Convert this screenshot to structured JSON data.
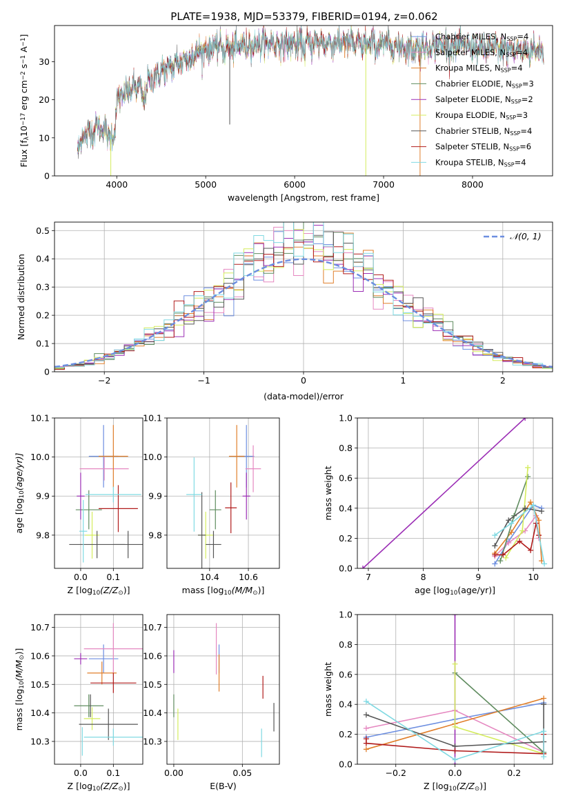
{
  "figure": {
    "title": "PLATE=1938, MJD=53379, FIBERID=0194, z=0.062"
  },
  "fits": [
    {
      "name": "Chabrier MILES",
      "nssp": "4",
      "color": "#6C8EE0"
    },
    {
      "name": "Salpeter MILES",
      "nssp": "4",
      "color": "#E587C0"
    },
    {
      "name": "Kroupa MILES",
      "nssp": "4",
      "color": "#E07E2A"
    },
    {
      "name": "Chabrier ELODIE",
      "nssp": "3",
      "color": "#5E8B5E"
    },
    {
      "name": "Salpeter ELODIE",
      "nssp": "2",
      "color": "#9B2DB5"
    },
    {
      "name": "Kroupa ELODIE",
      "nssp": "3",
      "color": "#D4EC5C"
    },
    {
      "name": "Chabrier STELIB",
      "nssp": "4",
      "color": "#555555"
    },
    {
      "name": "Salpeter STELIB",
      "nssp": "6",
      "color": "#B01A1A"
    },
    {
      "name": "Kroupa STELIB",
      "nssp": "4",
      "color": "#7FD9E2"
    }
  ],
  "chart_data": [
    {
      "id": "spectrum",
      "type": "line",
      "xlabel_parts": [
        "wavelength [Angstrom, rest frame]"
      ],
      "ylabel_parts": [
        "Flux [f",
        "λ",
        "10",
        "−17",
        " erg cm",
        "−2",
        " s",
        "−1",
        " A",
        "−1",
        "]"
      ],
      "legend_suffix": ", N",
      "legend_sub": "SSP",
      "xlim": [
        3300,
        8900
      ],
      "ylim": [
        0,
        39.5
      ],
      "xticks": [
        4000,
        5000,
        6000,
        7000,
        8000
      ],
      "yticks": [
        0,
        10,
        20,
        30
      ],
      "grid": false,
      "legend_position": "upper-right",
      "continuum": {
        "x": [
          3560,
          3620,
          3700,
          3800,
          3880,
          3930,
          3970,
          4000,
          4050,
          4150,
          4250,
          4300,
          4350,
          4450,
          4600,
          4800,
          4900,
          5000,
          5100,
          5200,
          5300,
          5500,
          5700,
          5900,
          6100,
          6300,
          6500,
          6560,
          6700,
          6900,
          7100,
          7300,
          7500,
          7700,
          7900,
          8100,
          8300,
          8500,
          8700,
          8800
        ],
        "y": [
          7.5,
          10.5,
          11.5,
          13,
          12,
          9.5,
          11,
          19.5,
          21,
          22.5,
          23.5,
          19.5,
          24.5,
          26.5,
          28.5,
          31,
          32.5,
          33,
          34,
          33.5,
          33.5,
          34.5,
          35,
          34.5,
          34.5,
          35,
          35,
          35.5,
          34.5,
          34.5,
          34.5,
          33.5,
          34,
          34.5,
          34,
          33.5,
          33.5,
          33,
          33,
          33
        ]
      },
      "residual_dips": [
        {
          "x": 3933,
          "y": 0
        },
        {
          "x": 5270,
          "y": 13.5
        },
        {
          "x": 5890,
          "y": 30
        },
        {
          "x": 6563,
          "y": 31
        },
        {
          "x": 6800,
          "y": 0
        },
        {
          "x": 7410,
          "y": 0
        }
      ]
    },
    {
      "id": "residual-histogram",
      "type": "histogram",
      "xlabel": "(data-model)/error",
      "ylabel": "Normed distribution",
      "xlim": [
        -2.5,
        2.5
      ],
      "ylim": [
        0,
        0.53
      ],
      "xticks": [
        -2,
        -1,
        0,
        1,
        2
      ],
      "yticks": [
        0.0,
        0.1,
        0.2,
        0.3,
        0.4,
        0.5
      ],
      "grid": true,
      "reference_curve": {
        "label": "𝒩(0, 1)",
        "mean": 0,
        "sigma": 1,
        "color": "#6C8EE0",
        "style": "dashed"
      },
      "bin_width": 0.1,
      "bin_start": -2.5
    },
    {
      "id": "age-vs-Z",
      "type": "errorbar",
      "xlabel_parts": [
        "Z [log",
        "10",
        "(Z/Z",
        "⊙",
        ")]"
      ],
      "ylabel_parts": [
        "age  [log",
        "10",
        "(age/yr)]"
      ],
      "xlim": [
        -0.08,
        0.19
      ],
      "ylim": [
        9.715,
        10.1
      ],
      "xticks": [
        0.0,
        0.1
      ],
      "xticklabels": [
        "0.0",
        "0.1"
      ],
      "yticks": [
        9.8,
        9.9,
        10.0,
        10.1
      ],
      "yticklabels": [
        "9.8",
        "9.9",
        "10.0",
        "10.1"
      ],
      "grid": true,
      "points": [
        {
          "fit": 0,
          "x": 0.07,
          "y": 10.002,
          "xerr": 0.045,
          "yerr": 0.08
        },
        {
          "fit": 1,
          "x": 0.072,
          "y": 9.97,
          "xerr": 0.075,
          "yerr": 0.03
        },
        {
          "fit": 2,
          "x": 0.1,
          "y": 10.002,
          "xerr": 0.045,
          "yerr": 0.08
        },
        {
          "fit": 3,
          "x": 0.025,
          "y": 9.865,
          "xerr": 0.04,
          "yerr": 0.05
        },
        {
          "fit": 4,
          "x": 0.0,
          "y": 9.9,
          "xerr": 0.012,
          "yerr": 0.06
        },
        {
          "fit": 5,
          "x": 0.035,
          "y": 9.8,
          "xerr": 0.022,
          "yerr": 0.06
        },
        {
          "fit": 6,
          "x": 0.05,
          "y": 9.776,
          "xerr": 0.085,
          "yerr": 0.035
        },
        {
          "fit": 6,
          "x": 0.145,
          "y": 9.776,
          "xerr": 0.045,
          "yerr": 0.035
        },
        {
          "fit": 7,
          "x": 0.115,
          "y": 9.868,
          "xerr": 0.06,
          "yerr": 0.06
        },
        {
          "fit": 8,
          "x": 0.008,
          "y": 9.81,
          "xerr": 0.012,
          "yerr": 0.08
        },
        {
          "fit": 8,
          "x": 0.1,
          "y": 9.904,
          "xerr": 0.085,
          "yerr": 0.02
        }
      ]
    },
    {
      "id": "age-vs-mass",
      "type": "errorbar",
      "xlabel_parts": [
        "mass [log",
        "10",
        "(M/M",
        "⊙",
        ")]"
      ],
      "xlim": [
        10.18,
        10.76
      ],
      "ylim": [
        9.715,
        10.1
      ],
      "xticks": [
        10.4,
        10.6
      ],
      "xticklabels": [
        "10.4",
        "10.6"
      ],
      "yticks": [
        9.8,
        9.9,
        10.0,
        10.1
      ],
      "yticklabels": [
        "9.8",
        "9.9",
        "10.0",
        "10.1"
      ],
      "grid": true,
      "points": [
        {
          "fit": 0,
          "x": 10.59,
          "y": 10.002,
          "xerr": 0.04,
          "yerr": 0.08
        },
        {
          "fit": 1,
          "x": 10.625,
          "y": 9.97,
          "xerr": 0.04,
          "yerr": 0.06
        },
        {
          "fit": 2,
          "x": 10.54,
          "y": 10.002,
          "xerr": 0.04,
          "yerr": 0.08
        },
        {
          "fit": 3,
          "x": 10.43,
          "y": 9.865,
          "xerr": 0.03,
          "yerr": 0.05
        },
        {
          "fit": 4,
          "x": 10.59,
          "y": 9.9,
          "xerr": 0.02,
          "yerr": 0.06
        },
        {
          "fit": 5,
          "x": 10.38,
          "y": 9.8,
          "xerr": 0.04,
          "yerr": 0.06
        },
        {
          "fit": 6,
          "x": 10.42,
          "y": 9.776,
          "xerr": 0.04,
          "yerr": 0.035
        },
        {
          "fit": 6,
          "x": 10.36,
          "y": 9.8,
          "xerr": 0.02,
          "yerr": 0.11
        },
        {
          "fit": 7,
          "x": 10.51,
          "y": 9.87,
          "xerr": 0.03,
          "yerr": 0.065
        },
        {
          "fit": 8,
          "x": 10.32,
          "y": 9.904,
          "xerr": 0.04,
          "yerr": 0.095
        }
      ]
    },
    {
      "id": "weight-vs-age",
      "type": "line",
      "xlabel_parts": [
        "age  [log",
        "10",
        "(age/yr)]"
      ],
      "ylabel_parts": [
        "mass weight"
      ],
      "xlim": [
        6.8,
        10.35
      ],
      "ylim": [
        0,
        1
      ],
      "xticks": [
        7,
        8,
        9,
        10
      ],
      "xticklabels": [
        "7",
        "8",
        "9",
        "10"
      ],
      "yticks": [
        0.0,
        0.2,
        0.4,
        0.6,
        0.8,
        1.0
      ],
      "yticklabels": [
        "0.0",
        "0.2",
        "0.4",
        "0.6",
        "0.8",
        "1.0"
      ],
      "grid": true,
      "series": [
        {
          "fit": 0,
          "x": [
            9.3,
            9.55,
            10.0,
            10.15
          ],
          "y": [
            0.03,
            0.18,
            0.42,
            0.4
          ]
        },
        {
          "fit": 1,
          "x": [
            9.3,
            9.55,
            9.85,
            10.05,
            10.1
          ],
          "y": [
            0.08,
            0.17,
            0.25,
            0.35,
            0.2
          ]
        },
        {
          "fit": 2,
          "x": [
            9.3,
            9.6,
            9.95,
            10.1,
            10.15
          ],
          "y": [
            0.1,
            0.24,
            0.44,
            0.32,
            0.05
          ]
        },
        {
          "fit": 3,
          "x": [
            9.4,
            9.65,
            9.9
          ],
          "y": [
            0.05,
            0.35,
            0.61
          ]
        },
        {
          "fit": 4,
          "x": [
            6.9,
            9.85
          ],
          "y": [
            0.0,
            1.0
          ]
        },
        {
          "fit": 5,
          "x": [
            9.5,
            9.8,
            9.9
          ],
          "y": [
            0.07,
            0.25,
            0.67
          ]
        },
        {
          "fit": 6,
          "x": [
            9.3,
            9.55,
            9.85,
            10.15
          ],
          "y": [
            0.15,
            0.32,
            0.4,
            0.38
          ]
        },
        {
          "fit": 7,
          "x": [
            9.3,
            9.45,
            9.75,
            9.95,
            10.05,
            10.1
          ],
          "y": [
            0.09,
            0.09,
            0.18,
            0.12,
            0.3,
            0.22
          ]
        },
        {
          "fit": 8,
          "x": [
            9.3,
            9.6,
            10.0,
            10.2
          ],
          "y": [
            0.22,
            0.3,
            0.42,
            0.03
          ]
        }
      ]
    },
    {
      "id": "mass-vs-Z",
      "type": "errorbar",
      "xlabel_parts": [
        "Z [log",
        "10",
        "(Z/Z",
        "⊙",
        ")]"
      ],
      "ylabel_parts": [
        "mass [log",
        "10",
        "(M/M",
        "⊙",
        ")]"
      ],
      "xlim": [
        -0.08,
        0.19
      ],
      "ylim": [
        10.22,
        10.745
      ],
      "xticks": [
        0.0,
        0.1
      ],
      "xticklabels": [
        "0.0",
        "0.1"
      ],
      "yticks": [
        10.3,
        10.4,
        10.5,
        10.6,
        10.7
      ],
      "yticklabels": [
        "10.3",
        "10.4",
        "10.5",
        "10.6",
        "10.7"
      ],
      "grid": true,
      "points": [
        {
          "fit": 0,
          "x": 0.07,
          "y": 10.59,
          "xerr": 0.045,
          "yerr": 0.05
        },
        {
          "fit": 1,
          "x": 0.1,
          "y": 10.625,
          "xerr": 0.09,
          "yerr": 0.09
        },
        {
          "fit": 2,
          "x": 0.065,
          "y": 10.54,
          "xerr": 0.045,
          "yerr": 0.04
        },
        {
          "fit": 3,
          "x": 0.025,
          "y": 10.425,
          "xerr": 0.045,
          "yerr": 0.04
        },
        {
          "fit": 4,
          "x": 0.0,
          "y": 10.59,
          "xerr": 0.02,
          "yerr": 0.02
        },
        {
          "fit": 5,
          "x": 0.035,
          "y": 10.38,
          "xerr": 0.025,
          "yerr": 0.04
        },
        {
          "fit": 6,
          "x": 0.085,
          "y": 10.36,
          "xerr": 0.09,
          "yerr": 0.055
        },
        {
          "fit": 6,
          "x": 0.03,
          "y": 10.425,
          "xerr": 0.0,
          "yerr": 0.04
        },
        {
          "fit": 7,
          "x": 0.1,
          "y": 10.505,
          "xerr": 0.07,
          "yerr": 0.035
        },
        {
          "fit": 8,
          "x": 0.1,
          "y": 10.315,
          "xerr": 0.09,
          "yerr": 0.03
        },
        {
          "fit": 8,
          "x": 0.005,
          "y": 10.3,
          "xerr": 0.0,
          "yerr": 0.05
        }
      ]
    },
    {
      "id": "mass-vs-ebv",
      "type": "errorbar",
      "xlabel_parts": [
        "E(B-V)"
      ],
      "xlim": [
        -0.005,
        0.077
      ],
      "ylim": [
        10.22,
        10.745
      ],
      "xticks": [
        0.0,
        0.05
      ],
      "xticklabels": [
        "0.00",
        "0.05"
      ],
      "yticks": [
        10.3,
        10.4,
        10.5,
        10.6,
        10.7
      ],
      "yticklabels": [
        "10.3",
        "10.4",
        "10.5",
        "10.6",
        "10.7"
      ],
      "grid": true,
      "points": [
        {
          "fit": 0,
          "x": 0.033,
          "y": 10.59,
          "xerr": 0.0,
          "yerr": 0.05
        },
        {
          "fit": 1,
          "x": 0.031,
          "y": 10.625,
          "xerr": 0.0,
          "yerr": 0.09
        },
        {
          "fit": 2,
          "x": 0.033,
          "y": 10.54,
          "xerr": 0.0,
          "yerr": 0.065
        },
        {
          "fit": 3,
          "x": 0.0,
          "y": 10.425,
          "xerr": 0.0,
          "yerr": 0.04
        },
        {
          "fit": 4,
          "x": 0.0,
          "y": 10.58,
          "xerr": 0.0,
          "yerr": 0.04
        },
        {
          "fit": 5,
          "x": 0.003,
          "y": 10.36,
          "xerr": 0.0,
          "yerr": 0.055
        },
        {
          "fit": 6,
          "x": 0.073,
          "y": 10.385,
          "xerr": 0.0,
          "yerr": 0.05
        },
        {
          "fit": 7,
          "x": 0.065,
          "y": 10.49,
          "xerr": 0.0,
          "yerr": 0.04
        },
        {
          "fit": 8,
          "x": 0.064,
          "y": 10.295,
          "xerr": 0.0,
          "yerr": 0.05
        }
      ]
    },
    {
      "id": "weight-vs-Z",
      "type": "line",
      "xlabel_parts": [
        "Z [log",
        "10",
        "(Z/Z",
        "⊙",
        ")]"
      ],
      "ylabel_parts": [
        "mass weight"
      ],
      "xlim": [
        -0.33,
        0.33
      ],
      "ylim": [
        0,
        1
      ],
      "xticks": [
        -0.2,
        0.0,
        0.2
      ],
      "xticklabels": [
        "−0.2",
        "0.0",
        "0.2"
      ],
      "yticks": [
        0.0,
        0.2,
        0.4,
        0.6,
        0.8,
        1.0
      ],
      "yticklabels": [
        "0.0",
        "0.2",
        "0.4",
        "0.6",
        "0.8",
        "1.0"
      ],
      "grid": true,
      "series": [
        {
          "fit": 0,
          "x": [
            -0.3,
            0.0,
            0.3
          ],
          "y": [
            0.18,
            0.3,
            0.41
          ]
        },
        {
          "fit": 1,
          "x": [
            -0.3,
            0.0,
            0.3
          ],
          "y": [
            0.24,
            0.36,
            0.08
          ]
        },
        {
          "fit": 2,
          "x": [
            -0.3,
            0.0,
            0.3
          ],
          "y": [
            0.1,
            0.27,
            0.44
          ]
        },
        {
          "fit": 3,
          "x": [
            0.0,
            0.3
          ],
          "y": [
            0.61,
            0.08
          ]
        },
        {
          "fit": 4,
          "x": [
            0.0,
            0.0
          ],
          "y": [
            0.0,
            1.0
          ]
        },
        {
          "fit": 5,
          "x": [
            0.0,
            0.0,
            0.3
          ],
          "y": [
            0.67,
            0.25,
            0.07
          ]
        },
        {
          "fit": 6,
          "x": [
            -0.3,
            0.0,
            0.3,
            0.3
          ],
          "y": [
            0.33,
            0.12,
            0.15,
            0.4
          ]
        },
        {
          "fit": 7,
          "x": [
            -0.3,
            -0.3,
            0.0,
            0.3,
            0.3
          ],
          "y": [
            0.17,
            0.14,
            0.09,
            0.07,
            0.2
          ]
        },
        {
          "fit": 8,
          "x": [
            -0.3,
            0.0,
            0.3,
            0.3
          ],
          "y": [
            0.42,
            0.03,
            0.22,
            0.05
          ]
        }
      ]
    }
  ]
}
